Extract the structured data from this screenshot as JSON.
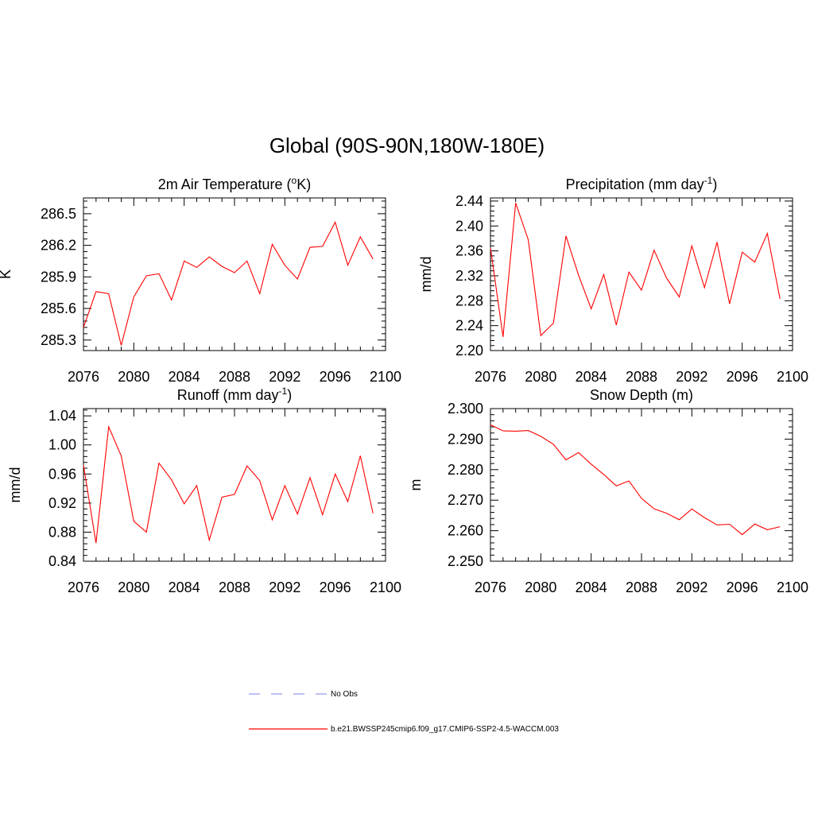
{
  "figure_title": "Global (90S-90N,180W-180E)",
  "colors": {
    "model": "#ff0000",
    "obs": "#9999ee",
    "axis": "#000000"
  },
  "legend": {
    "obs_label": "No Obs",
    "model_label": "b.e21.BWSSP245cmip6.f09_g17.CMIP6-SSP2-4.5-WACCM.003"
  },
  "chart_data": [
    {
      "type": "line",
      "title": "2m Air Temperature (",
      "title_sup": "o",
      "title_tail": "K)",
      "ylabel": "K",
      "xlim": [
        2076,
        2100
      ],
      "ylim": [
        285.2,
        286.65
      ],
      "xticks": [
        "2076",
        "2080",
        "2084",
        "2088",
        "2092",
        "2096",
        "2100"
      ],
      "yticks": [
        "285.3",
        "285.6",
        "285.9",
        "286.2",
        "286.5"
      ],
      "series": [
        {
          "name": "b.e21.BWSSP245cmip6.f09_g17.CMIP6-SSP2-4.5-WACCM.003",
          "x": [
            2076,
            2077,
            2078,
            2079,
            2080,
            2081,
            2082,
            2083,
            2084,
            2085,
            2086,
            2087,
            2088,
            2089,
            2090,
            2091,
            2092,
            2093,
            2094,
            2095,
            2096,
            2097,
            2098,
            2099
          ],
          "values": [
            285.42,
            285.76,
            285.74,
            285.25,
            285.71,
            285.91,
            285.93,
            285.68,
            286.05,
            285.99,
            286.09,
            286.0,
            285.94,
            286.05,
            285.74,
            286.21,
            286.01,
            285.88,
            286.18,
            286.19,
            286.42,
            286.01,
            286.28,
            286.07
          ]
        }
      ]
    },
    {
      "type": "line",
      "title": "Precipitation (mm day",
      "title_sup": "-1",
      "title_tail": ")",
      "ylabel": "mm/d",
      "xlim": [
        2076,
        2100
      ],
      "ylim": [
        2.2,
        2.445
      ],
      "xticks": [
        "2076",
        "2080",
        "2084",
        "2088",
        "2092",
        "2096",
        "2100"
      ],
      "yticks": [
        "2.20",
        "2.24",
        "2.28",
        "2.32",
        "2.36",
        "2.40",
        "2.44"
      ],
      "series": [
        {
          "name": "b.e21.BWSSP245cmip6.f09_g17.CMIP6-SSP2-4.5-WACCM.003",
          "x": [
            2076,
            2077,
            2078,
            2079,
            2080,
            2081,
            2082,
            2083,
            2084,
            2085,
            2086,
            2087,
            2088,
            2089,
            2090,
            2091,
            2092,
            2093,
            2094,
            2095,
            2096,
            2097,
            2098,
            2099
          ],
          "values": [
            2.365,
            2.222,
            2.437,
            2.378,
            2.224,
            2.244,
            2.384,
            2.321,
            2.267,
            2.322,
            2.241,
            2.326,
            2.297,
            2.361,
            2.316,
            2.286,
            2.368,
            2.301,
            2.374,
            2.275,
            2.358,
            2.342,
            2.388,
            2.283
          ]
        }
      ]
    },
    {
      "type": "line",
      "title": "Runoff (mm day",
      "title_sup": "-1",
      "title_tail": ")",
      "ylabel": "mm/d",
      "xlim": [
        2076,
        2100
      ],
      "ylim": [
        0.84,
        1.05
      ],
      "xticks": [
        "2076",
        "2080",
        "2084",
        "2088",
        "2092",
        "2096",
        "2100"
      ],
      "yticks": [
        "0.84",
        "0.88",
        "0.92",
        "0.96",
        "1.00",
        "1.04"
      ],
      "series": [
        {
          "name": "b.e21.BWSSP245cmip6.f09_g17.CMIP6-SSP2-4.5-WACCM.003",
          "x": [
            2076,
            2077,
            2078,
            2079,
            2080,
            2081,
            2082,
            2083,
            2084,
            2085,
            2086,
            2087,
            2088,
            2089,
            2090,
            2091,
            2092,
            2093,
            2094,
            2095,
            2096,
            2097,
            2098,
            2099
          ],
          "values": [
            0.972,
            0.865,
            1.025,
            0.985,
            0.895,
            0.88,
            0.975,
            0.952,
            0.919,
            0.944,
            0.869,
            0.928,
            0.932,
            0.971,
            0.951,
            0.897,
            0.944,
            0.905,
            0.955,
            0.904,
            0.96,
            0.922,
            0.985,
            0.906
          ]
        }
      ]
    },
    {
      "type": "line",
      "title": "Snow Depth (m)",
      "title_sup": "",
      "title_tail": "",
      "ylabel": "m",
      "xlim": [
        2076,
        2100
      ],
      "ylim": [
        2.25,
        2.3
      ],
      "xticks": [
        "2076",
        "2080",
        "2084",
        "2088",
        "2092",
        "2096",
        "2100"
      ],
      "yticks": [
        "2.250",
        "2.260",
        "2.270",
        "2.280",
        "2.290",
        "2.300"
      ],
      "series": [
        {
          "name": "b.e21.BWSSP245cmip6.f09_g17.CMIP6-SSP2-4.5-WACCM.003",
          "x": [
            2076,
            2077,
            2078,
            2079,
            2080,
            2081,
            2082,
            2083,
            2084,
            2085,
            2086,
            2087,
            2088,
            2089,
            2090,
            2091,
            2092,
            2093,
            2094,
            2095,
            2096,
            2097,
            2098,
            2099
          ],
          "values": [
            2.2947,
            2.2927,
            2.2926,
            2.2928,
            2.2909,
            2.2883,
            2.2832,
            2.2856,
            2.2818,
            2.2784,
            2.2747,
            2.2763,
            2.2706,
            2.2672,
            2.2657,
            2.2636,
            2.2671,
            2.2643,
            2.2619,
            2.2621,
            2.2587,
            2.2622,
            2.2603,
            2.2613
          ]
        }
      ]
    }
  ]
}
